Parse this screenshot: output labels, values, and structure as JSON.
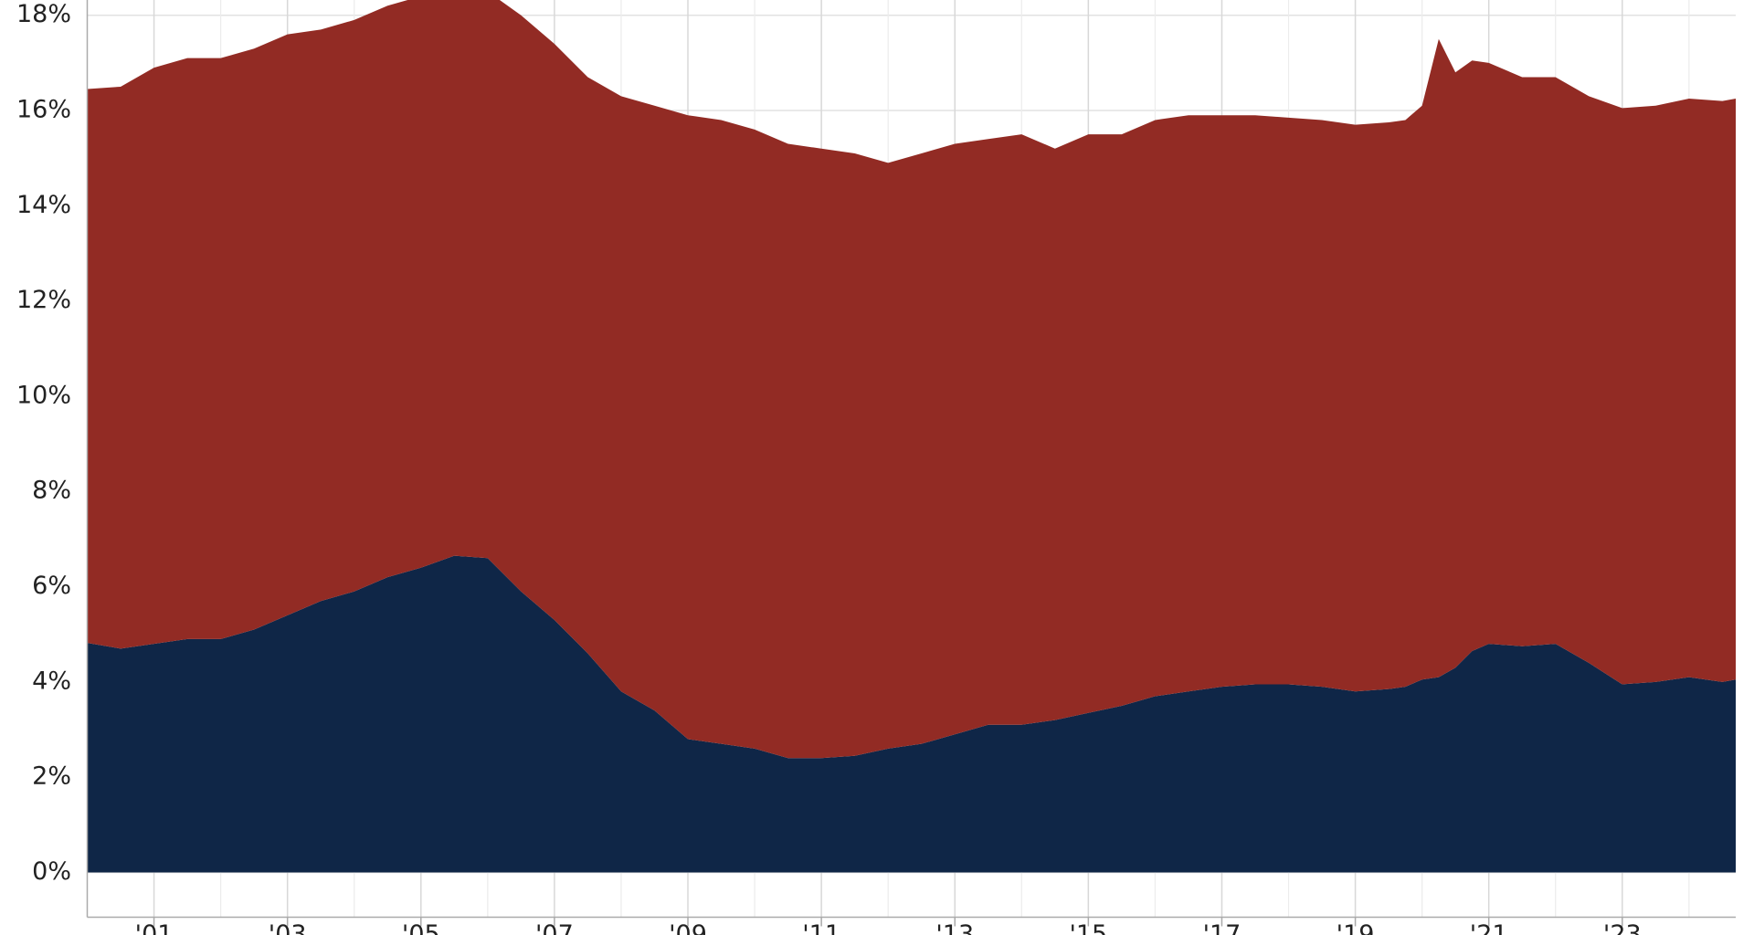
{
  "chart_data": {
    "type": "stacked_area",
    "x": [
      2000,
      2000.5,
      2001,
      2001.5,
      2002,
      2002.5,
      2003,
      2003.5,
      2004,
      2004.5,
      2005,
      2005.5,
      2006,
      2006.5,
      2007,
      2007.5,
      2008,
      2008.5,
      2009,
      2009.5,
      2010,
      2010.5,
      2011,
      2011.5,
      2012,
      2012.5,
      2013,
      2013.5,
      2014,
      2014.5,
      2015,
      2015.5,
      2016,
      2016.5,
      2017,
      2017.5,
      2018,
      2018.5,
      2019,
      2019.5,
      2019.75,
      2020,
      2020.25,
      2020.5,
      2020.75,
      2021,
      2021.5,
      2022,
      2022.5,
      2023,
      2023.5,
      2024,
      2024.5,
      2024.7
    ],
    "series": [
      {
        "color": "#0f2647",
        "values": [
          4.82,
          4.7,
          4.8,
          4.9,
          4.9,
          5.1,
          5.4,
          5.7,
          5.9,
          6.2,
          6.4,
          6.65,
          6.6,
          5.9,
          5.3,
          4.6,
          3.8,
          3.4,
          2.8,
          2.7,
          2.6,
          2.4,
          2.4,
          2.45,
          2.6,
          2.7,
          2.9,
          3.1,
          3.1,
          3.2,
          3.35,
          3.5,
          3.7,
          3.8,
          3.9,
          3.95,
          3.95,
          3.9,
          3.8,
          3.85,
          3.9,
          4.05,
          4.1,
          4.3,
          4.65,
          4.8,
          4.75,
          4.8,
          4.4,
          3.95,
          4.0,
          4.1,
          4.0,
          4.05
        ]
      },
      {
        "color": "#922b24",
        "values": [
          11.63,
          11.8,
          12.1,
          12.2,
          12.2,
          12.2,
          12.2,
          12.0,
          12.0,
          12.0,
          12.0,
          11.85,
          11.9,
          12.1,
          12.1,
          12.1,
          12.5,
          12.7,
          13.1,
          13.1,
          13.0,
          12.9,
          12.8,
          12.65,
          12.3,
          12.4,
          12.4,
          12.3,
          12.4,
          12.0,
          12.15,
          12.0,
          12.1,
          12.1,
          12.0,
          11.95,
          11.9,
          11.9,
          11.9,
          11.9,
          11.9,
          12.05,
          13.4,
          12.5,
          12.4,
          12.2,
          11.95,
          11.9,
          11.9,
          12.1,
          12.1,
          12.15,
          12.2,
          12.2
        ]
      }
    ],
    "xlim": [
      2000,
      2024.7
    ],
    "xticks": [
      {
        "value": 2001,
        "label": "'01"
      },
      {
        "value": 2003,
        "label": "'03"
      },
      {
        "value": 2005,
        "label": "'05"
      },
      {
        "value": 2007,
        "label": "'07"
      },
      {
        "value": 2009,
        "label": "'09"
      },
      {
        "value": 2011,
        "label": "'11"
      },
      {
        "value": 2013,
        "label": "'13"
      },
      {
        "value": 2015,
        "label": "'15"
      },
      {
        "value": 2017,
        "label": "'17"
      },
      {
        "value": 2019,
        "label": "'19"
      },
      {
        "value": 2021,
        "label": "'21"
      },
      {
        "value": 2023,
        "label": "'23"
      }
    ],
    "ylim": [
      -0.94,
      18.33
    ],
    "yticks": [
      {
        "value": 0,
        "label": "0%"
      },
      {
        "value": 2,
        "label": "2%"
      },
      {
        "value": 4,
        "label": "4%"
      },
      {
        "value": 6,
        "label": "6%"
      },
      {
        "value": 8,
        "label": "8%"
      },
      {
        "value": 10,
        "label": "10%"
      },
      {
        "value": 12,
        "label": "12%"
      },
      {
        "value": 14,
        "label": "14%"
      },
      {
        "value": 16,
        "label": "16%"
      },
      {
        "value": 18,
        "label": "18%"
      }
    ],
    "grid": true
  }
}
